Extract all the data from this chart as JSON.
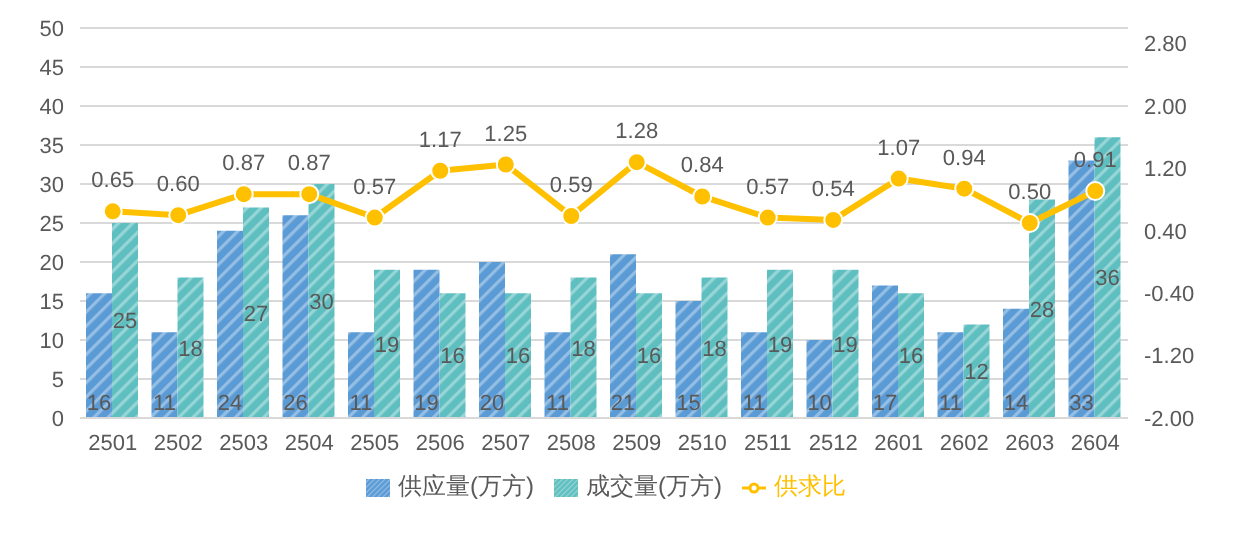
{
  "chart_data": {
    "type": "bar",
    "categories": [
      "2501",
      "2502",
      "2503",
      "2504",
      "2505",
      "2506",
      "2507",
      "2508",
      "2509",
      "2510",
      "2511",
      "2512",
      "2601",
      "2602",
      "2603",
      "2604"
    ],
    "series": [
      {
        "name": "供应量(万方)",
        "color": "#5b9bd5",
        "values": [
          16,
          11,
          24,
          26,
          11,
          19,
          20,
          11,
          21,
          15,
          11,
          10,
          17,
          11,
          14,
          33
        ]
      },
      {
        "name": "成交量(万方)",
        "color": "#5fbfc0",
        "values": [
          25,
          18,
          27,
          30,
          19,
          16,
          16,
          18,
          16,
          18,
          19,
          19,
          16,
          12,
          28,
          36
        ]
      },
      {
        "name": "供求比",
        "type": "line",
        "axis": "y2",
        "color": "#ffc000",
        "marker": "circle",
        "values": [
          0.65,
          0.6,
          0.87,
          0.87,
          0.57,
          1.17,
          1.25,
          0.59,
          1.28,
          0.84,
          0.57,
          0.54,
          1.07,
          0.94,
          0.5,
          0.91
        ],
        "value_labels": [
          "0.65",
          "0.60",
          "0.87",
          "0.87",
          "0.57",
          "1.17",
          "1.25",
          "0.59",
          "1.28",
          "0.84",
          "0.57",
          "0.54",
          "1.07",
          "0.94",
          "0.50",
          "0.91"
        ]
      }
    ],
    "ylim": [
      0,
      50
    ],
    "yticks": [
      0,
      5,
      10,
      15,
      20,
      25,
      30,
      35,
      40,
      45,
      50
    ],
    "y2lim": [
      -2,
      3
    ],
    "y2ticks": [
      {
        "value": -2,
        "label": "-2.00"
      },
      {
        "value": -1.2,
        "label": "-1.20"
      },
      {
        "value": -0.4,
        "label": "-0.40"
      },
      {
        "value": 0.4,
        "label": "0.40"
      },
      {
        "value": 1.2,
        "label": "1.20"
      },
      {
        "value": 2,
        "label": "2.00"
      },
      {
        "value": 2.8,
        "label": "2.80"
      }
    ],
    "grid": "y",
    "legend": "bottom",
    "data_labels": true
  }
}
